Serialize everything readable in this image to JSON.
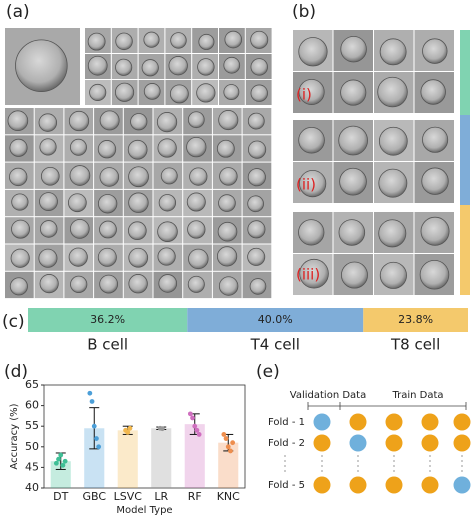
{
  "labels": {
    "a": "(a)",
    "b": "(b)",
    "c": "(c)",
    "d": "(d)",
    "e": "(e)",
    "i": "(i)",
    "ii": "(ii)",
    "iii": "(iii)"
  },
  "chart_data": [
    {
      "type": "stacked_bar",
      "categories": [
        "B cell",
        "T4 cell",
        "T8 cell"
      ],
      "values": [
        36.2,
        40.0,
        23.8
      ],
      "value_labels": [
        "36.2%",
        "40.0%",
        "23.8%"
      ],
      "colors": [
        "#80d3b1",
        "#7fadd8",
        "#f4c96c"
      ],
      "xlim": [
        0,
        100
      ]
    },
    {
      "type": "bar",
      "ylabel": "Accuracy (%)",
      "xlabel": "Model Type",
      "categories": [
        "DT",
        "GBC",
        "LSVC",
        "LR",
        "RF",
        "KNC"
      ],
      "values": [
        46.5,
        54.5,
        54,
        54.5,
        55.5,
        51
      ],
      "errors": [
        2,
        5,
        1,
        0.3,
        2.5,
        2
      ],
      "colors": [
        "#3fbf96",
        "#4c9fd8",
        "#f2b84e",
        "#999999",
        "#cf6fbf",
        "#ee8e4e"
      ],
      "points": [
        [
          46,
          47,
          48,
          45.5,
          46.5
        ],
        [
          63,
          61,
          55,
          52,
          50
        ],
        [
          54,
          53.5,
          54.5
        ],
        [
          54.5,
          54.4
        ],
        [
          58,
          57,
          55,
          54,
          53
        ],
        [
          53,
          52,
          50,
          49,
          51
        ]
      ],
      "ylim": [
        40,
        65
      ],
      "yticks": [
        40,
        45,
        50,
        55,
        60,
        65
      ]
    }
  ],
  "diagram": {
    "validation": "Validation Data",
    "train": "Train Data",
    "folds": [
      "Fold - 1",
      "Fold - 2",
      "Fold - 5"
    ]
  }
}
